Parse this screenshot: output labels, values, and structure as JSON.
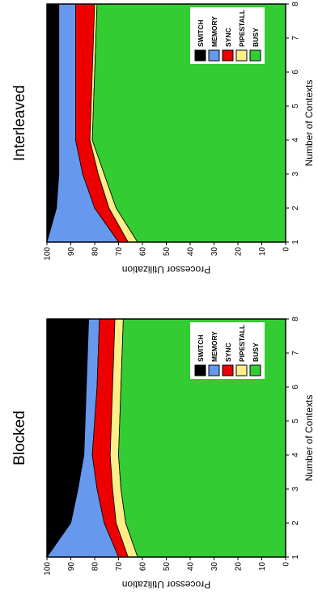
{
  "chart_data": [
    {
      "type": "area",
      "title": "Blocked",
      "xlabel": "Number of Contexts",
      "ylabel": "Processor Utilization",
      "x": [
        1,
        2,
        3,
        4,
        5,
        6,
        7,
        8
      ],
      "xlim": [
        1,
        8
      ],
      "ylim": [
        0,
        100
      ],
      "xticks": [
        1,
        2,
        3,
        4,
        5,
        6,
        7,
        8
      ],
      "yticks": [
        0,
        10,
        20,
        30,
        40,
        50,
        60,
        70,
        80,
        90,
        100
      ],
      "grid": false,
      "legend_position": "lower-right",
      "stacking": "cumulative",
      "series": [
        {
          "name": "BUSY",
          "color": "#33cc33",
          "values": [
            62,
            67,
            69,
            70,
            69.5,
            69,
            68.5,
            68
          ]
        },
        {
          "name": "PIPESTALL",
          "color": "#ffee88",
          "values": [
            66,
            71,
            72.5,
            73.5,
            73,
            72.5,
            72,
            71.5
          ]
        },
        {
          "name": "SYNC",
          "color": "#ee0000",
          "values": [
            70,
            76,
            79,
            81,
            80,
            79,
            78.5,
            78
          ]
        },
        {
          "name": "MEMORY",
          "color": "#6699ee",
          "values": [
            100,
            90,
            87,
            84.5,
            84,
            83.5,
            83,
            82.5
          ]
        },
        {
          "name": "SWITCH",
          "color": "#000000",
          "values": [
            100,
            100,
            100,
            100,
            100,
            100,
            100,
            100
          ]
        }
      ]
    },
    {
      "type": "area",
      "title": "Interleaved",
      "xlabel": "Number of Contexts",
      "ylabel": "Processor Utilization",
      "x": [
        1,
        2,
        3,
        4,
        5,
        6,
        7,
        8
      ],
      "xlim": [
        1,
        8
      ],
      "ylim": [
        0,
        100
      ],
      "xticks": [
        1,
        2,
        3,
        4,
        5,
        6,
        7,
        8
      ],
      "yticks": [
        0,
        10,
        20,
        30,
        40,
        50,
        60,
        70,
        80,
        90,
        100
      ],
      "grid": false,
      "legend_position": "lower-right",
      "stacking": "cumulative",
      "series": [
        {
          "name": "BUSY",
          "color": "#33cc33",
          "values": [
            62,
            71,
            76,
            81,
            80.5,
            80,
            79.5,
            79
          ]
        },
        {
          "name": "PIPESTALL",
          "color": "#ffee88",
          "values": [
            66,
            74,
            78.5,
            82,
            81.5,
            81,
            80.5,
            80
          ]
        },
        {
          "name": "SYNC",
          "color": "#ee0000",
          "values": [
            70,
            80,
            85,
            88,
            88,
            88,
            88,
            88
          ]
        },
        {
          "name": "MEMORY",
          "color": "#6699ee",
          "values": [
            100,
            96,
            95,
            95,
            95,
            95,
            95,
            95
          ]
        },
        {
          "name": "SWITCH",
          "color": "#000000",
          "values": [
            100,
            100,
            100,
            100,
            100,
            100,
            100,
            100
          ]
        }
      ]
    }
  ]
}
